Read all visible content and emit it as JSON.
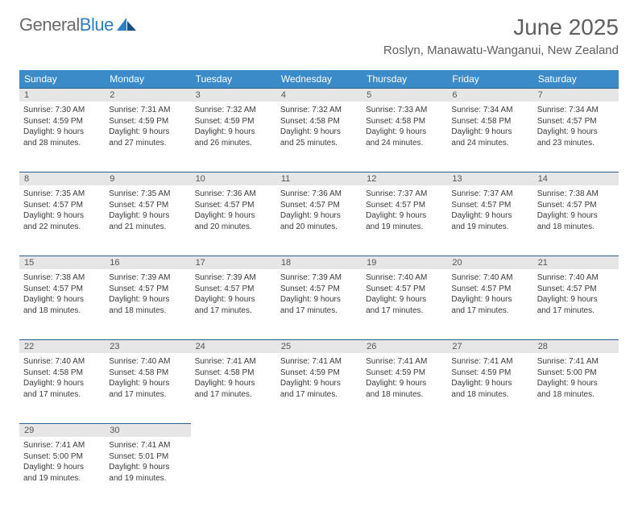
{
  "brand": {
    "word1": "General",
    "word2": "Blue"
  },
  "title": "June 2025",
  "location": "Roslyn, Manawatu-Wanganui, New Zealand",
  "colors": {
    "header_bg": "#3b8bc9",
    "header_text": "#ffffff",
    "daynum_bg": "#e6e6e6",
    "daynum_border": "#2f5e8a",
    "body_text": "#3a3a3a",
    "title_text": "#5f5f5f",
    "page_bg": "#ffffff"
  },
  "typography": {
    "title_fontsize_pt": 21,
    "location_fontsize_pt": 11,
    "header_fontsize_pt": 9,
    "daynum_fontsize_pt": 8,
    "body_fontsize_pt": 7.5
  },
  "dayHeaders": [
    "Sunday",
    "Monday",
    "Tuesday",
    "Wednesday",
    "Thursday",
    "Friday",
    "Saturday"
  ],
  "weeks": [
    [
      {
        "n": "1",
        "sr": "Sunrise: 7:30 AM",
        "ss": "Sunset: 4:59 PM",
        "d1": "Daylight: 9 hours",
        "d2": "and 28 minutes."
      },
      {
        "n": "2",
        "sr": "Sunrise: 7:31 AM",
        "ss": "Sunset: 4:59 PM",
        "d1": "Daylight: 9 hours",
        "d2": "and 27 minutes."
      },
      {
        "n": "3",
        "sr": "Sunrise: 7:32 AM",
        "ss": "Sunset: 4:59 PM",
        "d1": "Daylight: 9 hours",
        "d2": "and 26 minutes."
      },
      {
        "n": "4",
        "sr": "Sunrise: 7:32 AM",
        "ss": "Sunset: 4:58 PM",
        "d1": "Daylight: 9 hours",
        "d2": "and 25 minutes."
      },
      {
        "n": "5",
        "sr": "Sunrise: 7:33 AM",
        "ss": "Sunset: 4:58 PM",
        "d1": "Daylight: 9 hours",
        "d2": "and 24 minutes."
      },
      {
        "n": "6",
        "sr": "Sunrise: 7:34 AM",
        "ss": "Sunset: 4:58 PM",
        "d1": "Daylight: 9 hours",
        "d2": "and 24 minutes."
      },
      {
        "n": "7",
        "sr": "Sunrise: 7:34 AM",
        "ss": "Sunset: 4:57 PM",
        "d1": "Daylight: 9 hours",
        "d2": "and 23 minutes."
      }
    ],
    [
      {
        "n": "8",
        "sr": "Sunrise: 7:35 AM",
        "ss": "Sunset: 4:57 PM",
        "d1": "Daylight: 9 hours",
        "d2": "and 22 minutes."
      },
      {
        "n": "9",
        "sr": "Sunrise: 7:35 AM",
        "ss": "Sunset: 4:57 PM",
        "d1": "Daylight: 9 hours",
        "d2": "and 21 minutes."
      },
      {
        "n": "10",
        "sr": "Sunrise: 7:36 AM",
        "ss": "Sunset: 4:57 PM",
        "d1": "Daylight: 9 hours",
        "d2": "and 20 minutes."
      },
      {
        "n": "11",
        "sr": "Sunrise: 7:36 AM",
        "ss": "Sunset: 4:57 PM",
        "d1": "Daylight: 9 hours",
        "d2": "and 20 minutes."
      },
      {
        "n": "12",
        "sr": "Sunrise: 7:37 AM",
        "ss": "Sunset: 4:57 PM",
        "d1": "Daylight: 9 hours",
        "d2": "and 19 minutes."
      },
      {
        "n": "13",
        "sr": "Sunrise: 7:37 AM",
        "ss": "Sunset: 4:57 PM",
        "d1": "Daylight: 9 hours",
        "d2": "and 19 minutes."
      },
      {
        "n": "14",
        "sr": "Sunrise: 7:38 AM",
        "ss": "Sunset: 4:57 PM",
        "d1": "Daylight: 9 hours",
        "d2": "and 18 minutes."
      }
    ],
    [
      {
        "n": "15",
        "sr": "Sunrise: 7:38 AM",
        "ss": "Sunset: 4:57 PM",
        "d1": "Daylight: 9 hours",
        "d2": "and 18 minutes."
      },
      {
        "n": "16",
        "sr": "Sunrise: 7:39 AM",
        "ss": "Sunset: 4:57 PM",
        "d1": "Daylight: 9 hours",
        "d2": "and 18 minutes."
      },
      {
        "n": "17",
        "sr": "Sunrise: 7:39 AM",
        "ss": "Sunset: 4:57 PM",
        "d1": "Daylight: 9 hours",
        "d2": "and 17 minutes."
      },
      {
        "n": "18",
        "sr": "Sunrise: 7:39 AM",
        "ss": "Sunset: 4:57 PM",
        "d1": "Daylight: 9 hours",
        "d2": "and 17 minutes."
      },
      {
        "n": "19",
        "sr": "Sunrise: 7:40 AM",
        "ss": "Sunset: 4:57 PM",
        "d1": "Daylight: 9 hours",
        "d2": "and 17 minutes."
      },
      {
        "n": "20",
        "sr": "Sunrise: 7:40 AM",
        "ss": "Sunset: 4:57 PM",
        "d1": "Daylight: 9 hours",
        "d2": "and 17 minutes."
      },
      {
        "n": "21",
        "sr": "Sunrise: 7:40 AM",
        "ss": "Sunset: 4:57 PM",
        "d1": "Daylight: 9 hours",
        "d2": "and 17 minutes."
      }
    ],
    [
      {
        "n": "22",
        "sr": "Sunrise: 7:40 AM",
        "ss": "Sunset: 4:58 PM",
        "d1": "Daylight: 9 hours",
        "d2": "and 17 minutes."
      },
      {
        "n": "23",
        "sr": "Sunrise: 7:40 AM",
        "ss": "Sunset: 4:58 PM",
        "d1": "Daylight: 9 hours",
        "d2": "and 17 minutes."
      },
      {
        "n": "24",
        "sr": "Sunrise: 7:41 AM",
        "ss": "Sunset: 4:58 PM",
        "d1": "Daylight: 9 hours",
        "d2": "and 17 minutes."
      },
      {
        "n": "25",
        "sr": "Sunrise: 7:41 AM",
        "ss": "Sunset: 4:59 PM",
        "d1": "Daylight: 9 hours",
        "d2": "and 17 minutes."
      },
      {
        "n": "26",
        "sr": "Sunrise: 7:41 AM",
        "ss": "Sunset: 4:59 PM",
        "d1": "Daylight: 9 hours",
        "d2": "and 18 minutes."
      },
      {
        "n": "27",
        "sr": "Sunrise: 7:41 AM",
        "ss": "Sunset: 4:59 PM",
        "d1": "Daylight: 9 hours",
        "d2": "and 18 minutes."
      },
      {
        "n": "28",
        "sr": "Sunrise: 7:41 AM",
        "ss": "Sunset: 5:00 PM",
        "d1": "Daylight: 9 hours",
        "d2": "and 18 minutes."
      }
    ],
    [
      {
        "n": "29",
        "sr": "Sunrise: 7:41 AM",
        "ss": "Sunset: 5:00 PM",
        "d1": "Daylight: 9 hours",
        "d2": "and 19 minutes."
      },
      {
        "n": "30",
        "sr": "Sunrise: 7:41 AM",
        "ss": "Sunset: 5:01 PM",
        "d1": "Daylight: 9 hours",
        "d2": "and 19 minutes."
      },
      null,
      null,
      null,
      null,
      null
    ]
  ]
}
